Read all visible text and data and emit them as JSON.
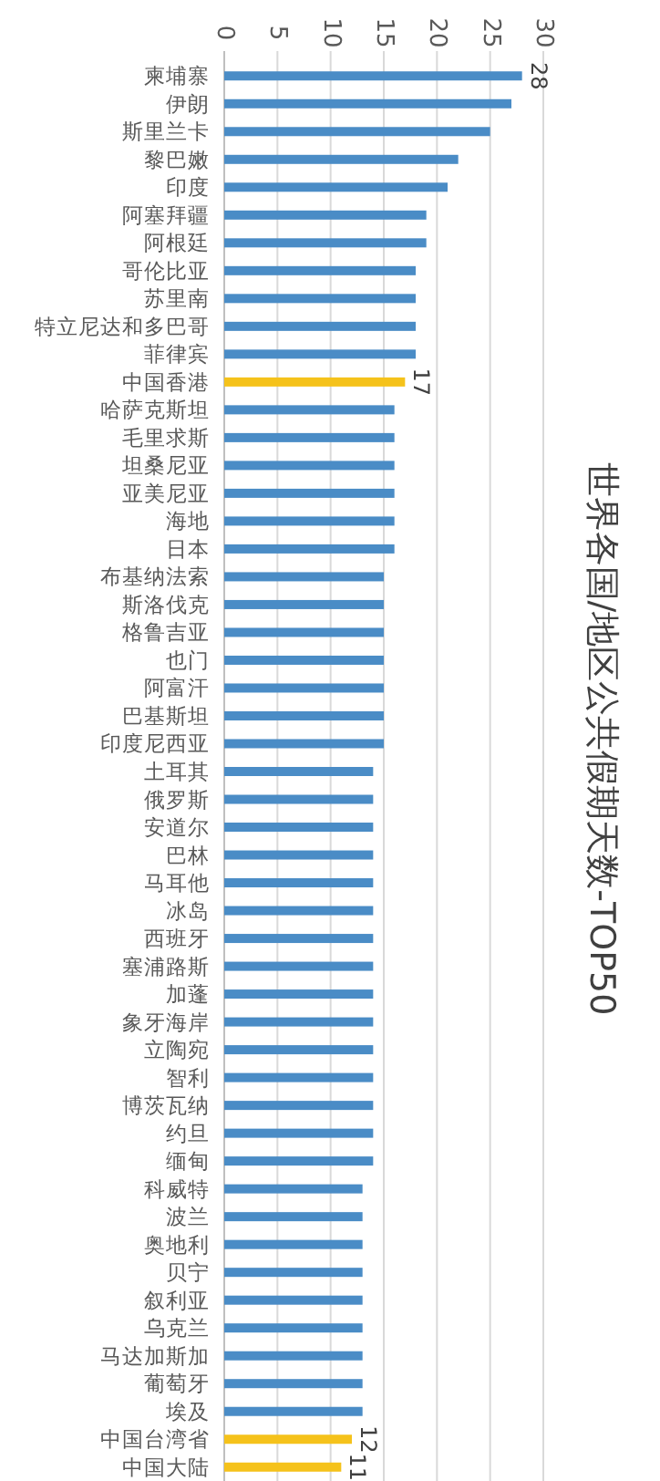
{
  "chart_data": {
    "type": "bar",
    "orientation": "horizontal",
    "title": "世界各国/地区公共假期天数-TOP50",
    "categories": [
      "柬埔寨",
      "伊朗",
      "斯里兰卡",
      "黎巴嫩",
      "印度",
      "阿塞拜疆",
      "阿根廷",
      "哥伦比亚",
      "苏里南",
      "特立尼达和多巴哥",
      "菲律宾",
      "中国香港",
      "哈萨克斯坦",
      "毛里求斯",
      "坦桑尼亚",
      "亚美尼亚",
      "海地",
      "日本",
      "布基纳法索",
      "斯洛伐克",
      "格鲁吉亚",
      "也门",
      "阿富汗",
      "巴基斯坦",
      "印度尼西亚",
      "土耳其",
      "俄罗斯",
      "安道尔",
      "巴林",
      "马耳他",
      "冰岛",
      "西班牙",
      "塞浦路斯",
      "加蓬",
      "象牙海岸",
      "立陶宛",
      "智利",
      "博茨瓦纳",
      "约旦",
      "缅甸",
      "科威特",
      "波兰",
      "奥地利",
      "贝宁",
      "叙利亚",
      "乌克兰",
      "马达加斯加",
      "葡萄牙",
      "埃及",
      "中国台湾省",
      "中国大陆"
    ],
    "values": [
      28,
      27,
      25,
      22,
      21,
      19,
      19,
      18,
      18,
      18,
      18,
      17,
      16,
      16,
      16,
      16,
      16,
      16,
      15,
      15,
      15,
      15,
      15,
      15,
      15,
      14,
      14,
      14,
      14,
      14,
      14,
      14,
      14,
      14,
      14,
      14,
      14,
      14,
      14,
      14,
      13,
      13,
      13,
      13,
      13,
      13,
      13,
      13,
      13,
      12,
      11
    ],
    "value_labels": [
      "28",
      null,
      null,
      null,
      null,
      null,
      null,
      null,
      null,
      null,
      null,
      "17",
      null,
      null,
      null,
      null,
      null,
      null,
      null,
      null,
      null,
      null,
      null,
      null,
      null,
      null,
      null,
      null,
      null,
      null,
      null,
      null,
      null,
      null,
      null,
      null,
      null,
      null,
      null,
      null,
      null,
      null,
      null,
      null,
      null,
      null,
      null,
      null,
      null,
      "12",
      "11"
    ],
    "colors": [
      "#4a8cc6",
      "#4a8cc6",
      "#4a8cc6",
      "#4a8cc6",
      "#4a8cc6",
      "#4a8cc6",
      "#4a8cc6",
      "#4a8cc6",
      "#4a8cc6",
      "#4a8cc6",
      "#4a8cc6",
      "#f5c21b",
      "#4a8cc6",
      "#4a8cc6",
      "#4a8cc6",
      "#4a8cc6",
      "#4a8cc6",
      "#4a8cc6",
      "#4a8cc6",
      "#4a8cc6",
      "#4a8cc6",
      "#4a8cc6",
      "#4a8cc6",
      "#4a8cc6",
      "#4a8cc6",
      "#4a8cc6",
      "#4a8cc6",
      "#4a8cc6",
      "#4a8cc6",
      "#4a8cc6",
      "#4a8cc6",
      "#4a8cc6",
      "#4a8cc6",
      "#4a8cc6",
      "#4a8cc6",
      "#4a8cc6",
      "#4a8cc6",
      "#4a8cc6",
      "#4a8cc6",
      "#4a8cc6",
      "#4a8cc6",
      "#4a8cc6",
      "#4a8cc6",
      "#4a8cc6",
      "#4a8cc6",
      "#4a8cc6",
      "#4a8cc6",
      "#4a8cc6",
      "#4a8cc6",
      "#f5c21b",
      "#f5c21b"
    ],
    "xlim": [
      0,
      30
    ],
    "xticks": [
      0,
      5,
      10,
      15,
      20,
      25,
      30
    ],
    "grid": "x"
  }
}
